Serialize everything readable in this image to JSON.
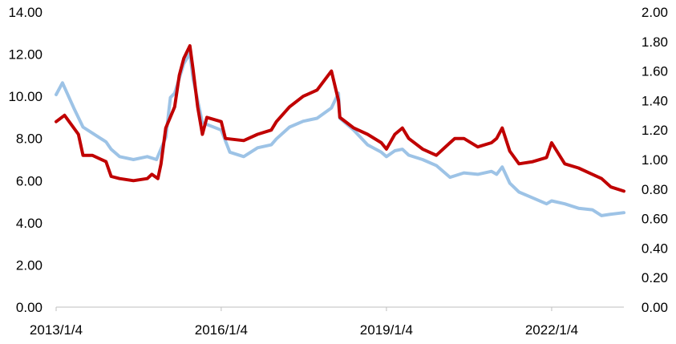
{
  "chart_data": {
    "type": "line",
    "title": "",
    "xlabel": "",
    "ylabel_left": "",
    "ylabel_right": "",
    "x_ticks": [
      "2013/1/4",
      "2016/1/4",
      "2019/1/4",
      "2022/1/4"
    ],
    "x_range": [
      "2013/1/4",
      "2023/4/28"
    ],
    "y_left": {
      "range": [
        0,
        14
      ],
      "ticks": [
        "0.00",
        "2.00",
        "4.00",
        "6.00",
        "8.00",
        "10.00",
        "12.00",
        "14.00"
      ]
    },
    "y_right": {
      "range": [
        0,
        2
      ],
      "ticks": [
        "0.00",
        "0.20",
        "0.40",
        "0.60",
        "0.80",
        "1.00",
        "1.20",
        "1.40",
        "1.60",
        "1.80",
        "2.00"
      ]
    },
    "grid": false,
    "legend": "none",
    "colors": {
      "series_left": "#c00000",
      "series_right": "#9dc3e6",
      "axis": "#bfbfbf"
    },
    "series": [
      {
        "axis": "left",
        "color": "#c00000",
        "x": [
          "2013/1/4",
          "2013/3/1",
          "2013/6/1",
          "2013/7/1",
          "2013/9/1",
          "2013/12/1",
          "2014/1/4",
          "2014/3/1",
          "2014/6/1",
          "2014/9/1",
          "2014/10/1",
          "2014/11/10",
          "2014/12/1",
          "2015/1/1",
          "2015/3/1",
          "2015/4/1",
          "2015/5/1",
          "2015/6/10",
          "2015/7/1",
          "2015/8/1",
          "2015/9/1",
          "2015/10/1",
          "2016/1/4",
          "2016/2/1",
          "2016/6/1",
          "2016/9/1",
          "2016/12/1",
          "2017/1/4",
          "2017/4/1",
          "2017/7/1",
          "2017/10/1",
          "2018/1/4",
          "2018/2/20",
          "2018/3/1",
          "2018/6/1",
          "2018/9/1",
          "2018/12/1",
          "2019/1/4",
          "2019/3/1",
          "2019/4/20",
          "2019/6/1",
          "2019/9/1",
          "2019/12/1",
          "2020/3/1",
          "2020/4/1",
          "2020/6/1",
          "2020/9/1",
          "2020/12/1",
          "2021/1/4",
          "2021/2/10",
          "2021/4/1",
          "2021/6/1",
          "2021/9/1",
          "2021/12/1",
          "2022/1/4",
          "2022/4/1",
          "2022/7/1",
          "2022/10/1",
          "2022/12/1",
          "2023/2/1",
          "2023/4/28"
        ],
        "values": [
          8.8,
          9.1,
          8.2,
          7.2,
          7.2,
          6.9,
          6.2,
          6.1,
          6.0,
          6.1,
          6.3,
          6.1,
          6.8,
          8.5,
          9.5,
          11.0,
          11.8,
          12.4,
          11.3,
          9.5,
          8.2,
          9.0,
          8.8,
          8.0,
          7.9,
          8.2,
          8.4,
          8.8,
          9.5,
          10.0,
          10.3,
          11.2,
          9.8,
          9.0,
          8.5,
          8.2,
          7.8,
          7.5,
          8.2,
          8.5,
          8.0,
          7.5,
          7.2,
          7.8,
          8.0,
          8.0,
          7.6,
          7.8,
          8.0,
          8.5,
          7.4,
          6.8,
          6.9,
          7.1,
          7.8,
          6.8,
          6.6,
          6.3,
          6.1,
          5.7,
          5.5
        ]
      },
      {
        "axis": "right",
        "color": "#9dc3e6",
        "x": [
          "2013/1/4",
          "2013/2/15",
          "2013/5/1",
          "2013/7/1",
          "2013/9/1",
          "2013/12/1",
          "2014/1/4",
          "2014/3/1",
          "2014/6/1",
          "2014/9/1",
          "2014/11/1",
          "2015/1/1",
          "2015/2/1",
          "2015/3/1",
          "2015/5/1",
          "2015/6/10",
          "2015/7/1",
          "2015/8/1",
          "2015/9/1",
          "2016/1/4",
          "2016/3/1",
          "2016/6/1",
          "2016/9/1",
          "2016/12/1",
          "2017/1/4",
          "2017/4/1",
          "2017/7/1",
          "2017/10/1",
          "2018/1/4",
          "2018/2/20",
          "2018/3/1",
          "2018/6/1",
          "2018/9/1",
          "2018/12/1",
          "2019/1/4",
          "2019/3/1",
          "2019/4/20",
          "2019/6/1",
          "2019/9/1",
          "2019/12/1",
          "2020/3/1",
          "2020/6/1",
          "2020/9/1",
          "2020/12/1",
          "2021/1/4",
          "2021/2/10",
          "2021/4/1",
          "2021/6/1",
          "2021/9/1",
          "2021/12/1",
          "2022/1/4",
          "2022/4/1",
          "2022/7/1",
          "2022/10/1",
          "2022/12/1",
          "2023/2/1",
          "2023/4/28"
        ],
        "values": [
          1.44,
          1.52,
          1.35,
          1.22,
          1.18,
          1.12,
          1.07,
          1.02,
          1.0,
          1.02,
          1.0,
          1.15,
          1.42,
          1.45,
          1.65,
          1.72,
          1.55,
          1.4,
          1.25,
          1.2,
          1.05,
          1.02,
          1.08,
          1.1,
          1.14,
          1.22,
          1.26,
          1.28,
          1.35,
          1.45,
          1.28,
          1.2,
          1.1,
          1.05,
          1.02,
          1.06,
          1.07,
          1.03,
          1.0,
          0.96,
          0.88,
          0.91,
          0.9,
          0.92,
          0.9,
          0.95,
          0.84,
          0.78,
          0.74,
          0.7,
          0.72,
          0.7,
          0.67,
          0.66,
          0.62,
          0.63,
          0.64
        ]
      }
    ]
  }
}
